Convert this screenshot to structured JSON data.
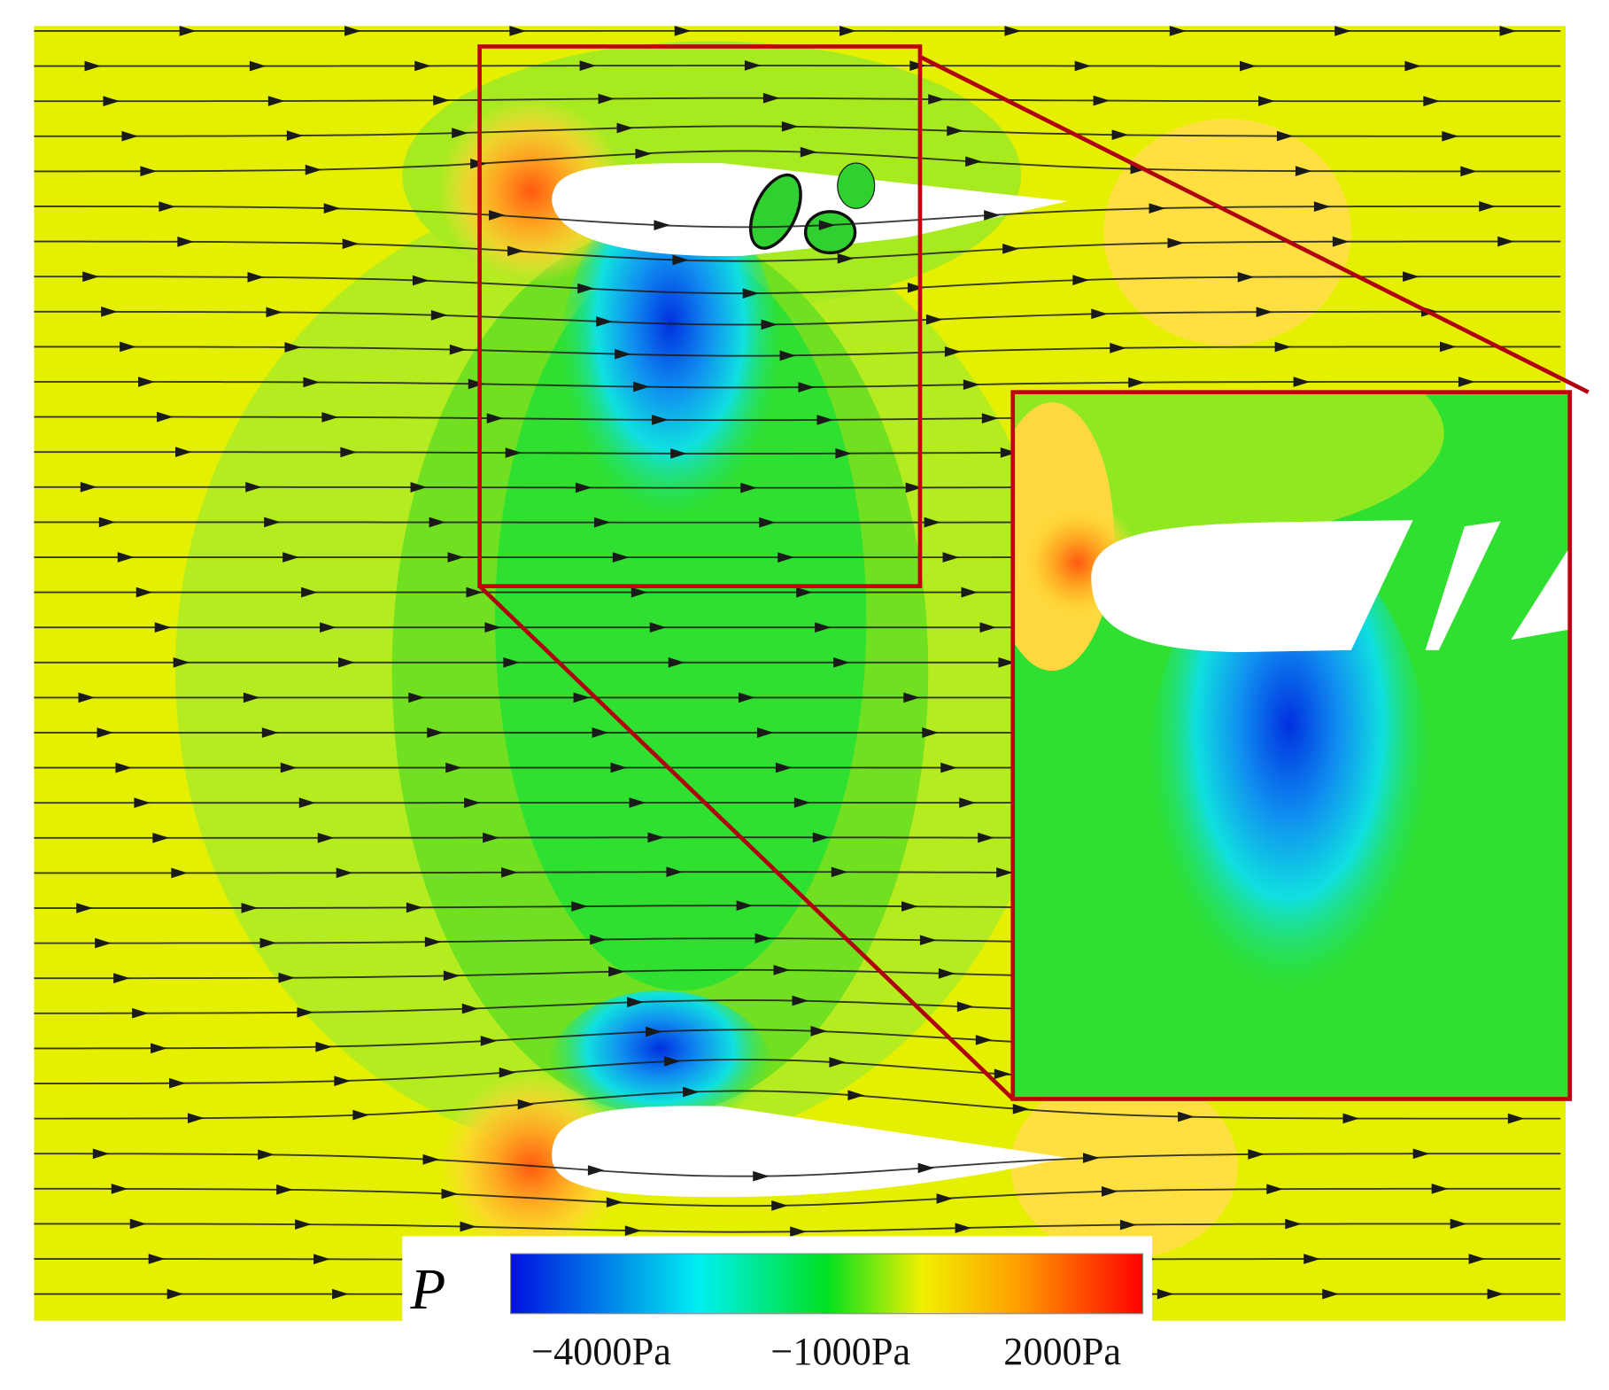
{
  "figure": {
    "colorbar": {
      "label": "P",
      "ticks": [
        "−4000Pa",
        "−1000Pa",
        "2000Pa"
      ]
    }
  }
}
